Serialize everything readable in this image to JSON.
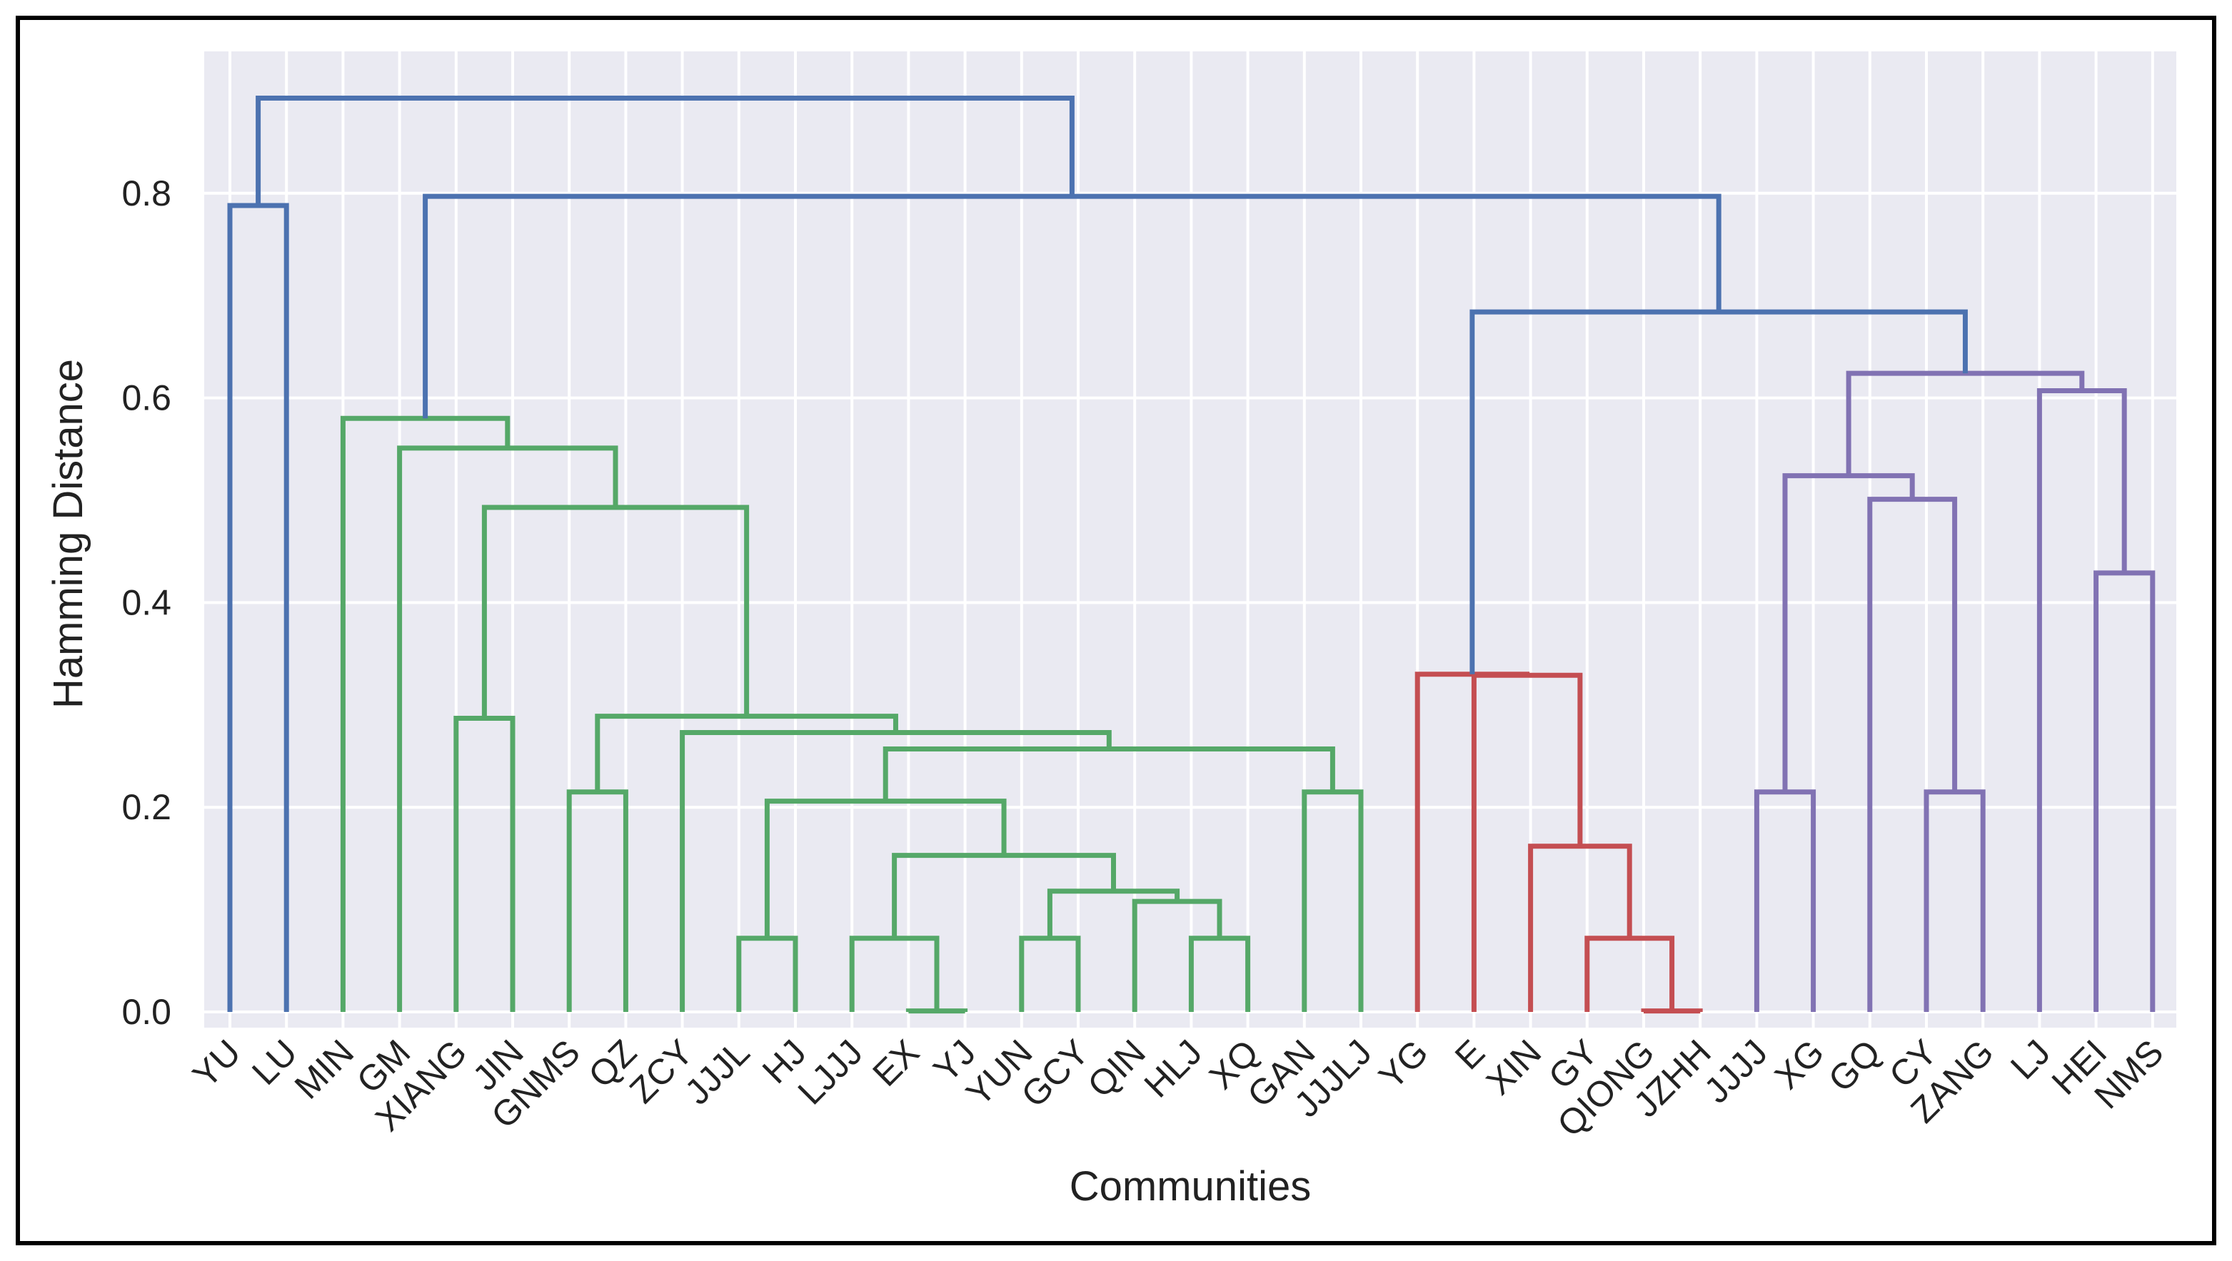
{
  "chart_data": {
    "type": "dendrogram",
    "title": "",
    "xlabel": "Communities",
    "ylabel": "Hamming Distance",
    "ylim": [
      0,
      0.92
    ],
    "yticks": [
      0.0,
      0.2,
      0.4,
      0.6,
      0.8
    ],
    "ytick_labels": [
      "0.0",
      "0.2",
      "0.4",
      "0.6",
      "0.8"
    ],
    "grid": true,
    "colors": {
      "background": "#eaeaf2",
      "grid": "#ffffff",
      "root": "#4c72b0",
      "green": "#55a868",
      "red": "#c44e52",
      "purple": "#8172b3"
    },
    "leaves": [
      "YU",
      "LU",
      "MIN",
      "GM",
      "XIANG",
      "JIN",
      "GNMS",
      "QZ",
      "ZCY",
      "JJJL",
      "HJ",
      "LJJJ",
      "EX",
      "YJ",
      "YUN",
      "GCY",
      "QIN",
      "HLJ",
      "XQ",
      "GAN",
      "JJJLJ",
      "YG",
      "E",
      "XIN",
      "GY",
      "QIONG",
      "JZHH",
      "JJJJ",
      "XG",
      "GQ",
      "CY",
      "ZANG",
      "LJ",
      "HEI",
      "NMS"
    ],
    "merges": [
      {
        "left": "EX",
        "right": "YJ",
        "height": 0.001,
        "color": "green"
      },
      {
        "left": "QIONG",
        "right": "JZHH",
        "height": 0.001,
        "color": "red"
      },
      {
        "left": "JJJL",
        "right": "HJ",
        "height": 0.072,
        "color": "green"
      },
      {
        "left": "LJJJ",
        "right": "EX+YJ",
        "height": 0.072,
        "color": "green"
      },
      {
        "left": "YUN",
        "right": "GCY",
        "height": 0.072,
        "color": "green"
      },
      {
        "left": "HLJ",
        "right": "XQ",
        "height": 0.072,
        "color": "green"
      },
      {
        "left": "GY",
        "right": "QIONG+JZHH",
        "height": 0.072,
        "color": "red"
      },
      {
        "left": "QIN",
        "right": "HLJ+XQ",
        "height": 0.108,
        "color": "green"
      },
      {
        "left": "YUN+GCY",
        "right": "QIN+HLJ+XQ",
        "height": 0.118,
        "color": "green"
      },
      {
        "left": "LJJJ+EX+YJ",
        "right": "YUN..XQ",
        "height": 0.153,
        "color": "green"
      },
      {
        "left": "XIN",
        "right": "GY+QIONG+JZHH",
        "height": 0.162,
        "color": "red"
      },
      {
        "left": "JJJL+HJ",
        "right": "LJJJ..XQ",
        "height": 0.206,
        "color": "green"
      },
      {
        "left": "GNMS",
        "right": "QZ",
        "height": 0.215,
        "color": "green"
      },
      {
        "left": "GAN",
        "right": "JJJLJ",
        "height": 0.215,
        "color": "green"
      },
      {
        "left": "JJJJ",
        "right": "XG",
        "height": 0.215,
        "color": "purple"
      },
      {
        "left": "CY",
        "right": "ZANG",
        "height": 0.215,
        "color": "purple"
      },
      {
        "left": "JJJL..XQ",
        "right": "GAN+JJJLJ",
        "height": 0.257,
        "color": "green"
      },
      {
        "left": "ZCY",
        "right": "JJJL..JJJLJ",
        "height": 0.273,
        "color": "green"
      },
      {
        "left": "XIANG",
        "right": "JIN",
        "height": 0.287,
        "color": "green"
      },
      {
        "left": "GNMS+QZ",
        "right": "ZCY..JJJLJ",
        "height": 0.289,
        "color": "green"
      },
      {
        "left": "E",
        "right": "XIN..JZHH",
        "height": 0.329,
        "color": "red"
      },
      {
        "left": "YG",
        "right": "E..JZHH",
        "height": 0.33,
        "color": "red"
      },
      {
        "left": "HEI",
        "right": "NMS",
        "height": 0.429,
        "color": "purple"
      },
      {
        "left": "XIANG+JIN",
        "right": "GNMS..JJJLJ",
        "height": 0.493,
        "color": "green"
      },
      {
        "left": "GQ",
        "right": "CY+ZANG",
        "height": 0.501,
        "color": "purple"
      },
      {
        "left": "JJJJ+XG",
        "right": "GQ+CY+ZANG",
        "height": 0.524,
        "color": "purple"
      },
      {
        "left": "GM",
        "right": "XIANG..JJJLJ",
        "height": 0.551,
        "color": "green"
      },
      {
        "left": "MIN",
        "right": "GM..JJJLJ",
        "height": 0.58,
        "color": "green"
      },
      {
        "left": "LJ",
        "right": "HEI+NMS",
        "height": 0.607,
        "color": "purple"
      },
      {
        "left": "JJJJ..ZANG",
        "right": "LJ+HEI+NMS",
        "height": 0.624,
        "color": "purple"
      },
      {
        "left": "YG..JZHH",
        "right": "JJJJ..NMS",
        "height": 0.684,
        "color": "root"
      },
      {
        "left": "YU",
        "right": "LU",
        "height": 0.788,
        "color": "root"
      },
      {
        "left": "MIN..JJJLJ",
        "right": "YG..NMS",
        "height": 0.797,
        "color": "root"
      },
      {
        "left": "YU+LU",
        "right": "MIN..NMS",
        "height": 0.893,
        "color": "root"
      }
    ]
  }
}
